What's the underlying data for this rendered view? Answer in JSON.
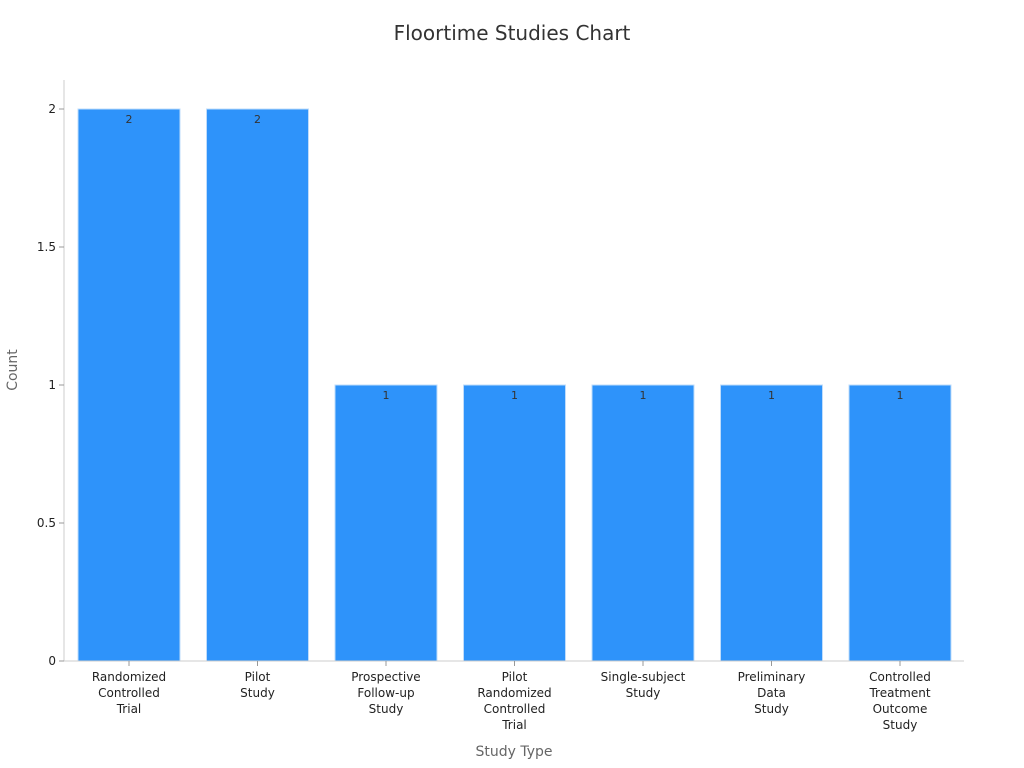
{
  "chart_data": {
    "type": "bar",
    "title": "Floortime Studies Chart",
    "xlabel": "Study Type",
    "ylabel": "Count",
    "categories": [
      "Randomized Controlled Trial",
      "Pilot Study",
      "Prospective Follow-up Study",
      "Pilot Randomized Controlled Trial",
      "Single-subject Study",
      "Preliminary Data Study",
      "Controlled Treatment Outcome Study"
    ],
    "category_lines": [
      [
        "Randomized",
        "Controlled",
        "Trial"
      ],
      [
        "Pilot",
        "Study"
      ],
      [
        "Prospective",
        "Follow-up",
        "Study"
      ],
      [
        "Pilot",
        "Randomized",
        "Controlled",
        "Trial"
      ],
      [
        "Single-subject",
        "Study"
      ],
      [
        "Preliminary",
        "Data",
        "Study"
      ],
      [
        "Controlled",
        "Treatment",
        "Outcome",
        "Study"
      ]
    ],
    "values": [
      2,
      2,
      1,
      1,
      1,
      1,
      1
    ],
    "ylim": [
      0,
      2
    ],
    "yticks": [
      "0",
      "0.5",
      "1",
      "1.5",
      "2"
    ],
    "grid": false,
    "legend": "none",
    "bar_color": "#2e93fa"
  }
}
